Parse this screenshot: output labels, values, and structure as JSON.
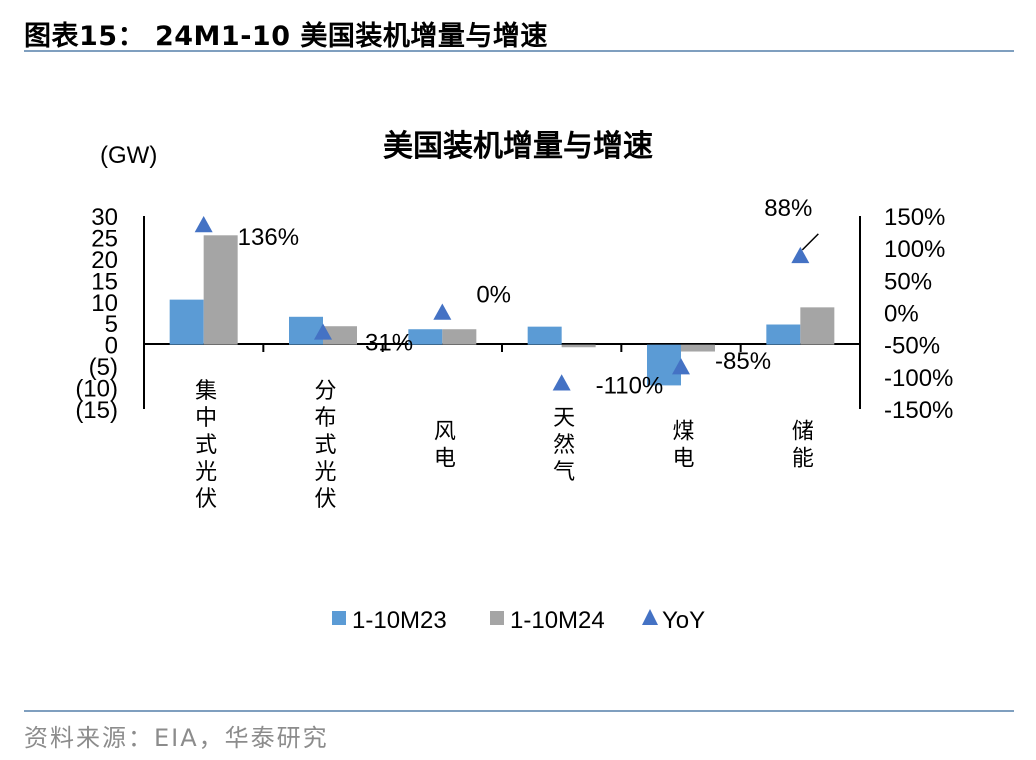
{
  "figure": {
    "title": "图表15： 24M1-10 美国装机增量与增速",
    "source": "资料来源：EIA，华泰研究"
  },
  "chart_data": {
    "type": "bar",
    "title": "美国装机增量与增速",
    "unit_label": "(GW)",
    "categories": [
      "集中式光伏",
      "分布式光伏",
      "风电",
      "天然气",
      "煤电",
      "储能"
    ],
    "series": [
      {
        "name": "1-10M23",
        "values": [
          10.5,
          6.5,
          3.6,
          4.2,
          -9.5,
          4.7
        ],
        "color": "#5b9bd5",
        "axis": "left"
      },
      {
        "name": "1-10M24",
        "values": [
          25.5,
          4.3,
          3.6,
          -0.6,
          -1.6,
          8.7
        ],
        "color": "#a5a5a5",
        "axis": "left"
      },
      {
        "name": "YoY",
        "values": [
          136,
          -31,
          0,
          -110,
          -85,
          88
        ],
        "color": "#4472c4",
        "axis": "right",
        "marker": "triangle"
      }
    ],
    "data_labels": [
      "136%",
      "-31%",
      "0%",
      "-110%",
      "-85%",
      "88%"
    ],
    "left_axis": {
      "ylim": [
        -15,
        30
      ],
      "ticks": [
        "30",
        "25",
        "20",
        "15",
        "10",
        "5",
        "0",
        "(5)",
        "(10)",
        "(15)"
      ]
    },
    "right_axis": {
      "ylim": [
        -150,
        150
      ],
      "ticks": [
        "150%",
        "100%",
        "50%",
        "0%",
        "-50%",
        "-100%",
        "-150%"
      ]
    },
    "grid": false,
    "legend": "bottom"
  }
}
